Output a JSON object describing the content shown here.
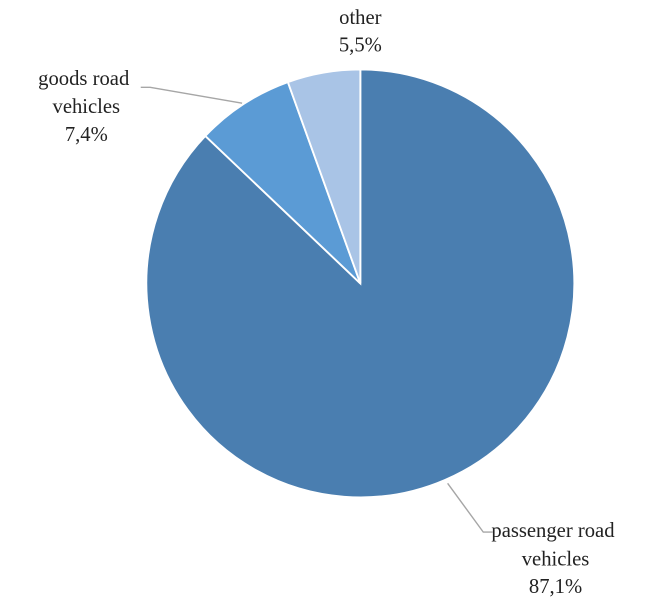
{
  "chart_data": {
    "type": "pie",
    "categories": [
      "passenger road vehicles",
      "goods road vehicles",
      "other"
    ],
    "values": [
      87.1,
      7.4,
      5.5
    ],
    "value_labels": [
      "87,1%",
      "7,4%",
      "5,5%"
    ],
    "colors": [
      "#4a7eb0",
      "#5b9bd5",
      "#a9c4e6"
    ]
  }
}
